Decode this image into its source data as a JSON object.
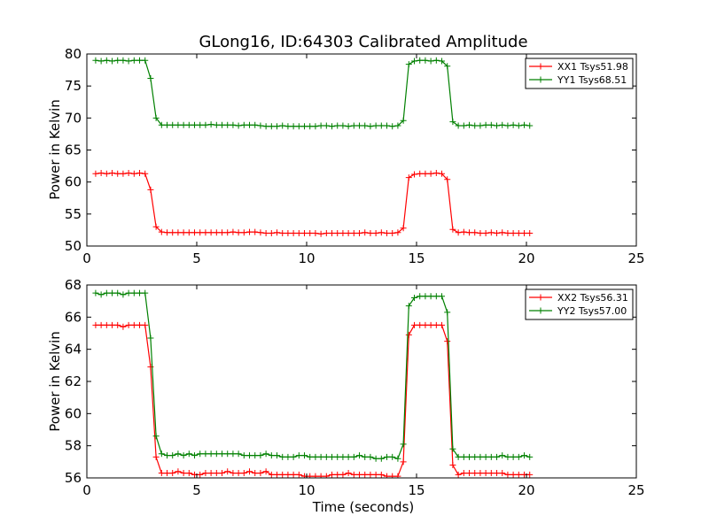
{
  "chart_data": [
    {
      "type": "line",
      "title": "GLong16, ID:64303 Calibrated Amplitude",
      "xlabel": "",
      "ylabel": "Power in Kelvin",
      "xlim": [
        0,
        25
      ],
      "ylim": [
        50,
        80
      ],
      "xticks": [
        0,
        5,
        10,
        15,
        20,
        25
      ],
      "yticks": [
        50,
        55,
        60,
        65,
        70,
        75,
        80
      ],
      "legend": "top-right",
      "x": [
        0.4,
        0.65,
        0.9,
        1.15,
        1.4,
        1.65,
        1.9,
        2.15,
        2.4,
        2.65,
        2.9,
        3.15,
        3.4,
        3.65,
        3.9,
        4.15,
        4.4,
        4.65,
        4.9,
        5.15,
        5.4,
        5.65,
        5.9,
        6.15,
        6.4,
        6.65,
        6.9,
        7.15,
        7.4,
        7.65,
        7.9,
        8.15,
        8.4,
        8.65,
        8.9,
        9.15,
        9.4,
        9.65,
        9.9,
        10.15,
        10.4,
        10.65,
        10.9,
        11.15,
        11.4,
        11.65,
        11.9,
        12.15,
        12.4,
        12.65,
        12.9,
        13.15,
        13.4,
        13.65,
        13.9,
        14.15,
        14.4,
        14.65,
        14.9,
        15.15,
        15.4,
        15.65,
        15.9,
        16.15,
        16.4,
        16.65,
        16.9,
        17.15,
        17.4,
        17.65,
        17.9,
        18.15,
        18.4,
        18.65,
        18.9,
        19.15,
        19.4,
        19.65,
        19.9,
        20.15
      ],
      "series": [
        {
          "name": "XX1 Tsys51.98",
          "color": "#ff0000",
          "values": [
            61.3,
            61.4,
            61.3,
            61.4,
            61.3,
            61.3,
            61.4,
            61.3,
            61.4,
            61.3,
            58.8,
            53.0,
            52.2,
            52.1,
            52.1,
            52.1,
            52.1,
            52.1,
            52.1,
            52.1,
            52.1,
            52.1,
            52.1,
            52.1,
            52.1,
            52.2,
            52.1,
            52.1,
            52.2,
            52.2,
            52.1,
            52.0,
            52.0,
            52.1,
            52.0,
            52.0,
            52.0,
            52.0,
            52.0,
            52.0,
            52.0,
            51.9,
            52.0,
            52.0,
            52.0,
            52.0,
            52.0,
            52.0,
            52.0,
            52.1,
            52.0,
            52.0,
            52.1,
            52.0,
            52.0,
            52.1,
            52.8,
            60.7,
            61.2,
            61.3,
            61.3,
            61.3,
            61.4,
            61.3,
            60.4,
            52.6,
            52.1,
            52.2,
            52.1,
            52.1,
            52.0,
            52.0,
            52.1,
            52.0,
            52.1,
            52.0,
            52.0,
            52.0,
            52.0,
            52.0
          ]
        },
        {
          "name": "YY1 Tsys68.51",
          "color": "#008000",
          "values": [
            79.0,
            78.9,
            79.0,
            78.9,
            79.0,
            79.0,
            78.9,
            79.0,
            79.0,
            79.0,
            76.2,
            70.0,
            68.9,
            68.9,
            68.9,
            68.9,
            68.9,
            68.9,
            68.9,
            68.9,
            68.9,
            69.0,
            68.9,
            68.9,
            68.9,
            68.9,
            68.8,
            68.9,
            68.9,
            68.9,
            68.8,
            68.7,
            68.7,
            68.7,
            68.8,
            68.7,
            68.7,
            68.7,
            68.7,
            68.7,
            68.7,
            68.8,
            68.8,
            68.7,
            68.8,
            68.8,
            68.7,
            68.8,
            68.8,
            68.8,
            68.7,
            68.8,
            68.8,
            68.8,
            68.7,
            68.8,
            69.6,
            78.4,
            78.9,
            79.0,
            79.0,
            78.9,
            79.0,
            78.9,
            78.1,
            69.4,
            68.8,
            68.8,
            68.9,
            68.8,
            68.8,
            68.9,
            68.9,
            68.8,
            68.9,
            68.8,
            68.9,
            68.8,
            68.9,
            68.8
          ]
        }
      ]
    },
    {
      "type": "line",
      "title": "",
      "xlabel": "Time (seconds)",
      "ylabel": "Power in Kelvin",
      "xlim": [
        0,
        25
      ],
      "ylim": [
        56,
        68
      ],
      "xticks": [
        0,
        5,
        10,
        15,
        20,
        25
      ],
      "yticks": [
        56,
        58,
        60,
        62,
        64,
        66,
        68
      ],
      "legend": "top-right",
      "x": [
        0.4,
        0.65,
        0.9,
        1.15,
        1.4,
        1.65,
        1.9,
        2.15,
        2.4,
        2.65,
        2.9,
        3.15,
        3.4,
        3.65,
        3.9,
        4.15,
        4.4,
        4.65,
        4.9,
        5.15,
        5.4,
        5.65,
        5.9,
        6.15,
        6.4,
        6.65,
        6.9,
        7.15,
        7.4,
        7.65,
        7.9,
        8.15,
        8.4,
        8.65,
        8.9,
        9.15,
        9.4,
        9.65,
        9.9,
        10.15,
        10.4,
        10.65,
        10.9,
        11.15,
        11.4,
        11.65,
        11.9,
        12.15,
        12.4,
        12.65,
        12.9,
        13.15,
        13.4,
        13.65,
        13.9,
        14.15,
        14.4,
        14.65,
        14.9,
        15.15,
        15.4,
        15.65,
        15.9,
        16.15,
        16.4,
        16.65,
        16.9,
        17.15,
        17.4,
        17.65,
        17.9,
        18.15,
        18.4,
        18.65,
        18.9,
        19.15,
        19.4,
        19.65,
        19.9,
        20.15
      ],
      "series": [
        {
          "name": "XX2 Tsys56.31",
          "color": "#ff0000",
          "values": [
            65.5,
            65.5,
            65.5,
            65.5,
            65.5,
            65.4,
            65.5,
            65.5,
            65.5,
            65.5,
            62.9,
            57.3,
            56.3,
            56.3,
            56.3,
            56.4,
            56.3,
            56.3,
            56.2,
            56.2,
            56.3,
            56.3,
            56.3,
            56.3,
            56.4,
            56.3,
            56.3,
            56.3,
            56.4,
            56.3,
            56.3,
            56.4,
            56.2,
            56.2,
            56.2,
            56.2,
            56.2,
            56.2,
            56.1,
            56.1,
            56.1,
            56.1,
            56.1,
            56.2,
            56.2,
            56.2,
            56.3,
            56.2,
            56.2,
            56.2,
            56.2,
            56.2,
            56.2,
            56.1,
            56.1,
            56.1,
            57.0,
            64.9,
            65.5,
            65.5,
            65.5,
            65.5,
            65.5,
            65.5,
            64.5,
            56.8,
            56.2,
            56.3,
            56.3,
            56.3,
            56.3,
            56.3,
            56.3,
            56.3,
            56.3,
            56.2,
            56.2,
            56.2,
            56.2,
            56.2
          ]
        },
        {
          "name": "YY2 Tsys57.00",
          "color": "#008000",
          "values": [
            67.5,
            67.4,
            67.5,
            67.5,
            67.5,
            67.4,
            67.5,
            67.5,
            67.5,
            67.5,
            64.7,
            58.6,
            57.5,
            57.4,
            57.4,
            57.5,
            57.4,
            57.5,
            57.4,
            57.5,
            57.5,
            57.5,
            57.5,
            57.5,
            57.5,
            57.5,
            57.5,
            57.4,
            57.4,
            57.4,
            57.4,
            57.5,
            57.4,
            57.4,
            57.3,
            57.3,
            57.3,
            57.4,
            57.4,
            57.3,
            57.3,
            57.3,
            57.3,
            57.3,
            57.3,
            57.3,
            57.3,
            57.3,
            57.4,
            57.3,
            57.3,
            57.2,
            57.2,
            57.3,
            57.3,
            57.2,
            58.1,
            66.7,
            67.2,
            67.3,
            67.3,
            67.3,
            67.3,
            67.3,
            66.3,
            57.8,
            57.3,
            57.3,
            57.3,
            57.3,
            57.3,
            57.3,
            57.3,
            57.3,
            57.4,
            57.3,
            57.3,
            57.3,
            57.4,
            57.3
          ]
        }
      ]
    }
  ]
}
